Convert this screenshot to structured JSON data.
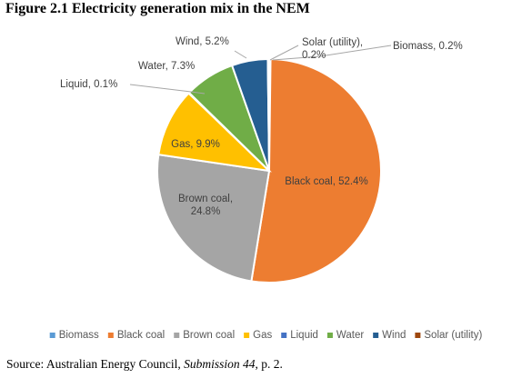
{
  "figure_title": "Figure 2.1 Electricity generation mix in the NEM",
  "source": {
    "prefix": "Source: Australian Energy Council, ",
    "italic": "Submission 44",
    "suffix": ", p. 2."
  },
  "chart_data": {
    "type": "pie",
    "title": "",
    "start_angle_deg": 0,
    "direction": "clockwise",
    "slices": [
      {
        "name": "Biomass",
        "value": 0.2,
        "label": "Biomass, 0.2%",
        "label_lines": [
          "Biomass, 0.2%"
        ],
        "color": "#5b9bd5"
      },
      {
        "name": "Black coal",
        "value": 52.4,
        "label": "Black coal, 52.4%",
        "label_lines": [
          "Black coal, 52.4%"
        ],
        "color": "#ed7d31"
      },
      {
        "name": "Brown coal",
        "value": 24.8,
        "label": "Brown coal, 24.8%",
        "label_lines": [
          "Brown coal,",
          "24.8%"
        ],
        "color": "#a5a5a5"
      },
      {
        "name": "Gas",
        "value": 9.9,
        "label": "Gas, 9.9%",
        "label_lines": [
          "Gas, 9.9%"
        ],
        "color": "#ffc000"
      },
      {
        "name": "Liquid",
        "value": 0.1,
        "label": "Liquid, 0.1%",
        "label_lines": [
          "Liquid, 0.1%"
        ],
        "color": "#4472c4"
      },
      {
        "name": "Water",
        "value": 7.3,
        "label": "Water, 7.3%",
        "label_lines": [
          "Water, 7.3%"
        ],
        "color": "#70ad47"
      },
      {
        "name": "Wind",
        "value": 5.2,
        "label": "Wind, 5.2%",
        "label_lines": [
          "Wind, 5.2%"
        ],
        "color": "#255e91"
      },
      {
        "name": "Solar (utility)",
        "value": 0.2,
        "label": "Solar (utility), 0.2%",
        "label_lines": [
          "Solar (utility),",
          "0.2%"
        ],
        "color": "#9e480e"
      }
    ],
    "legend": {
      "placement": "bottom",
      "items": [
        "Biomass",
        "Black coal",
        "Brown coal",
        "Gas",
        "Liquid",
        "Water",
        "Wind",
        "Solar (utility)"
      ]
    }
  }
}
